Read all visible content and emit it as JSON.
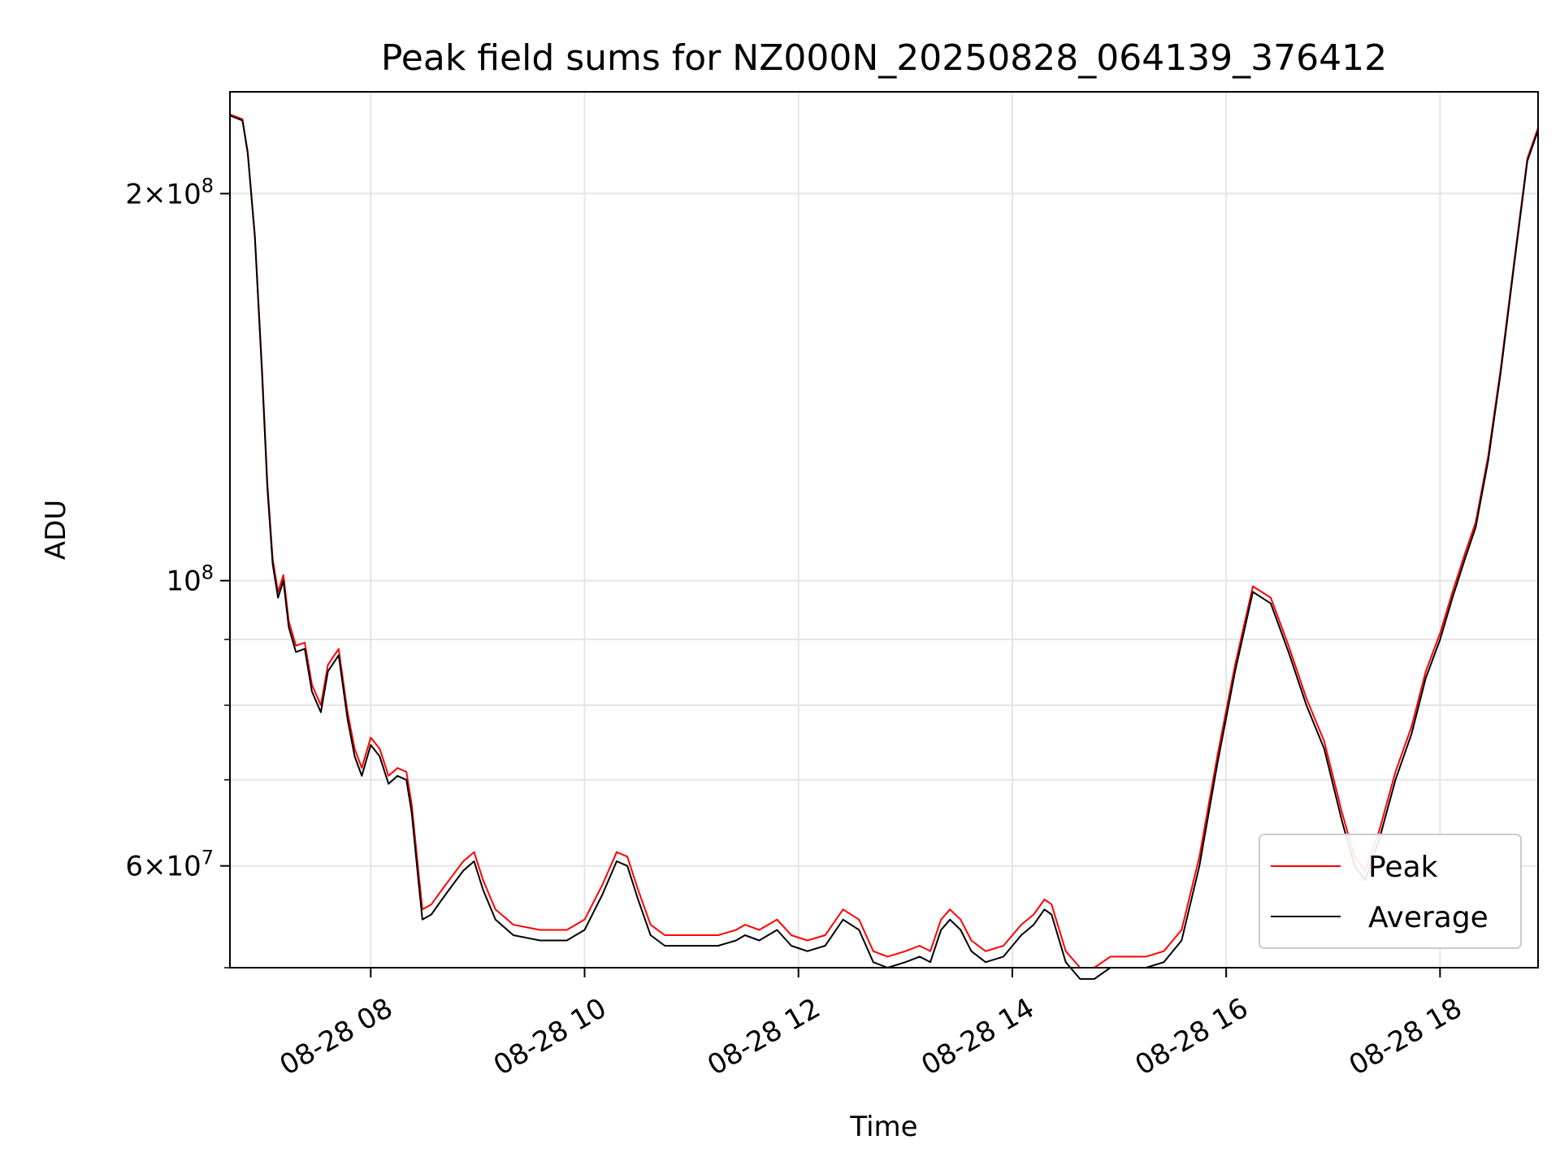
{
  "chart_data": {
    "type": "line",
    "title": "Peak field sums for NZ000N_20250828_064139_376412",
    "xlabel": "Time",
    "ylabel": "ADU",
    "x_range": [
      "2025-08-28 06:41",
      "2025-08-28 18:55"
    ],
    "ylim": [
      50000000,
      240000000
    ],
    "y_scale": "log",
    "grid": true,
    "legend": "bottom-right",
    "x_ticks": [
      {
        "value": "2025-08-28 08:00",
        "label": "08-28 08"
      },
      {
        "value": "2025-08-28 10:00",
        "label": "08-28 10"
      },
      {
        "value": "2025-08-28 12:00",
        "label": "08-28 12"
      },
      {
        "value": "2025-08-28 14:00",
        "label": "08-28 14"
      },
      {
        "value": "2025-08-28 16:00",
        "label": "08-28 16"
      },
      {
        "value": "2025-08-28 18:00",
        "label": "08-28 18"
      }
    ],
    "y_ticks": [
      {
        "value": 60000000,
        "base": "6",
        "exp": "7"
      },
      {
        "value": 100000000,
        "base": "10",
        "exp": "8"
      },
      {
        "value": 200000000,
        "base": "2",
        "exp": "8"
      }
    ],
    "y_minor_ticks": [
      50000000,
      70000000,
      80000000,
      90000000
    ],
    "series": [
      {
        "name": "Average",
        "color": "#000000",
        "points": [
          [
            "2025-08-28 06:41",
            230000000
          ],
          [
            "2025-08-28 06:48",
            228000000
          ],
          [
            "2025-08-28 06:51",
            215000000
          ],
          [
            "2025-08-28 06:55",
            185000000
          ],
          [
            "2025-08-28 06:59",
            145000000
          ],
          [
            "2025-08-28 07:02",
            118000000
          ],
          [
            "2025-08-28 07:05",
            103000000
          ],
          [
            "2025-08-28 07:08",
            97000000
          ],
          [
            "2025-08-28 07:11",
            100000000
          ],
          [
            "2025-08-28 07:14",
            92000000
          ],
          [
            "2025-08-28 07:18",
            88000000
          ],
          [
            "2025-08-28 07:23",
            88500000
          ],
          [
            "2025-08-28 07:27",
            82000000
          ],
          [
            "2025-08-28 07:32",
            79000000
          ],
          [
            "2025-08-28 07:36",
            85000000
          ],
          [
            "2025-08-28 07:42",
            87500000
          ],
          [
            "2025-08-28 07:47",
            78000000
          ],
          [
            "2025-08-28 07:51",
            73000000
          ],
          [
            "2025-08-28 07:55",
            70500000
          ],
          [
            "2025-08-28 08:00",
            74500000
          ],
          [
            "2025-08-28 08:05",
            73000000
          ],
          [
            "2025-08-28 08:10",
            69500000
          ],
          [
            "2025-08-28 08:15",
            70500000
          ],
          [
            "2025-08-28 08:20",
            70000000
          ],
          [
            "2025-08-28 08:23",
            66000000
          ],
          [
            "2025-08-28 08:27",
            58000000
          ],
          [
            "2025-08-28 08:29",
            54500000
          ],
          [
            "2025-08-28 08:34",
            55000000
          ],
          [
            "2025-08-28 08:40",
            56500000
          ],
          [
            "2025-08-28 08:46",
            58000000
          ],
          [
            "2025-08-28 08:52",
            59500000
          ],
          [
            "2025-08-28 08:58",
            60500000
          ],
          [
            "2025-08-28 09:03",
            57500000
          ],
          [
            "2025-08-28 09:10",
            54500000
          ],
          [
            "2025-08-28 09:20",
            53000000
          ],
          [
            "2025-08-28 09:35",
            52500000
          ],
          [
            "2025-08-28 09:50",
            52500000
          ],
          [
            "2025-08-28 10:00",
            53500000
          ],
          [
            "2025-08-28 10:10",
            57000000
          ],
          [
            "2025-08-28 10:18",
            60500000
          ],
          [
            "2025-08-28 10:24",
            60000000
          ],
          [
            "2025-08-28 10:30",
            56500000
          ],
          [
            "2025-08-28 10:37",
            53000000
          ],
          [
            "2025-08-28 10:45",
            52000000
          ],
          [
            "2025-08-28 11:00",
            52000000
          ],
          [
            "2025-08-28 11:15",
            52000000
          ],
          [
            "2025-08-28 11:25",
            52500000
          ],
          [
            "2025-08-28 11:30",
            53000000
          ],
          [
            "2025-08-28 11:38",
            52500000
          ],
          [
            "2025-08-28 11:48",
            53500000
          ],
          [
            "2025-08-28 11:56",
            52000000
          ],
          [
            "2025-08-28 12:05",
            51500000
          ],
          [
            "2025-08-28 12:15",
            52000000
          ],
          [
            "2025-08-28 12:25",
            54500000
          ],
          [
            "2025-08-28 12:34",
            53500000
          ],
          [
            "2025-08-28 12:42",
            50500000
          ],
          [
            "2025-08-28 12:50",
            50000000
          ],
          [
            "2025-08-28 13:00",
            50500000
          ],
          [
            "2025-08-28 13:08",
            51000000
          ],
          [
            "2025-08-28 13:14",
            50500000
          ],
          [
            "2025-08-28 13:20",
            53500000
          ],
          [
            "2025-08-28 13:25",
            54500000
          ],
          [
            "2025-08-28 13:31",
            53500000
          ],
          [
            "2025-08-28 13:37",
            51500000
          ],
          [
            "2025-08-28 13:45",
            50500000
          ],
          [
            "2025-08-28 13:55",
            51000000
          ],
          [
            "2025-08-28 14:05",
            53000000
          ],
          [
            "2025-08-28 14:12",
            54000000
          ],
          [
            "2025-08-28 14:18",
            55500000
          ],
          [
            "2025-08-28 14:22",
            55000000
          ],
          [
            "2025-08-28 14:30",
            50500000
          ],
          [
            "2025-08-28 14:38",
            49000000
          ],
          [
            "2025-08-28 14:46",
            49000000
          ],
          [
            "2025-08-28 14:55",
            50000000
          ],
          [
            "2025-08-28 15:05",
            50000000
          ],
          [
            "2025-08-28 15:15",
            50000000
          ],
          [
            "2025-08-28 15:25",
            50500000
          ],
          [
            "2025-08-28 15:35",
            52500000
          ],
          [
            "2025-08-28 15:45",
            60000000
          ],
          [
            "2025-08-28 15:55",
            72000000
          ],
          [
            "2025-08-28 16:05",
            85000000
          ],
          [
            "2025-08-28 16:15",
            98000000
          ],
          [
            "2025-08-28 16:25",
            96000000
          ],
          [
            "2025-08-28 16:35",
            88000000
          ],
          [
            "2025-08-28 16:45",
            80000000
          ],
          [
            "2025-08-28 16:55",
            74000000
          ],
          [
            "2025-08-28 17:05",
            65000000
          ],
          [
            "2025-08-28 17:12",
            60000000
          ],
          [
            "2025-08-28 17:18",
            58500000
          ],
          [
            "2025-08-28 17:26",
            63000000
          ],
          [
            "2025-08-28 17:35",
            70000000
          ],
          [
            "2025-08-28 17:44",
            76000000
          ],
          [
            "2025-08-28 17:52",
            84000000
          ],
          [
            "2025-08-28 18:00",
            90000000
          ],
          [
            "2025-08-28 18:07",
            97000000
          ],
          [
            "2025-08-28 18:14",
            104000000
          ],
          [
            "2025-08-28 18:20",
            110000000
          ],
          [
            "2025-08-28 18:27",
            124000000
          ],
          [
            "2025-08-28 18:34",
            145000000
          ],
          [
            "2025-08-28 18:42",
            178000000
          ],
          [
            "2025-08-28 18:49",
            212000000
          ],
          [
            "2025-08-28 18:55",
            224000000
          ]
        ]
      },
      {
        "name": "Peak",
        "color": "#ff0000",
        "points": [
          [
            "2025-08-28 06:41",
            230500000
          ],
          [
            "2025-08-28 06:48",
            228500000
          ],
          [
            "2025-08-28 06:51",
            215500000
          ],
          [
            "2025-08-28 06:55",
            185500000
          ],
          [
            "2025-08-28 06:59",
            146000000
          ],
          [
            "2025-08-28 07:02",
            119000000
          ],
          [
            "2025-08-28 07:05",
            104000000
          ],
          [
            "2025-08-28 07:08",
            98000000
          ],
          [
            "2025-08-28 07:11",
            101000000
          ],
          [
            "2025-08-28 07:14",
            93000000
          ],
          [
            "2025-08-28 07:18",
            89000000
          ],
          [
            "2025-08-28 07:23",
            89500000
          ],
          [
            "2025-08-28 07:27",
            83000000
          ],
          [
            "2025-08-28 07:32",
            80000000
          ],
          [
            "2025-08-28 07:36",
            86000000
          ],
          [
            "2025-08-28 07:42",
            88500000
          ],
          [
            "2025-08-28 07:47",
            79000000
          ],
          [
            "2025-08-28 07:51",
            74000000
          ],
          [
            "2025-08-28 07:55",
            71500000
          ],
          [
            "2025-08-28 08:00",
            75500000
          ],
          [
            "2025-08-28 08:05",
            74000000
          ],
          [
            "2025-08-28 08:10",
            70500000
          ],
          [
            "2025-08-28 08:15",
            71500000
          ],
          [
            "2025-08-28 08:20",
            71000000
          ],
          [
            "2025-08-28 08:23",
            67000000
          ],
          [
            "2025-08-28 08:27",
            59000000
          ],
          [
            "2025-08-28 08:29",
            55500000
          ],
          [
            "2025-08-28 08:34",
            56000000
          ],
          [
            "2025-08-28 08:40",
            57500000
          ],
          [
            "2025-08-28 08:46",
            59000000
          ],
          [
            "2025-08-28 08:52",
            60500000
          ],
          [
            "2025-08-28 08:58",
            61500000
          ],
          [
            "2025-08-28 09:03",
            58500000
          ],
          [
            "2025-08-28 09:10",
            55500000
          ],
          [
            "2025-08-28 09:20",
            54000000
          ],
          [
            "2025-08-28 09:35",
            53500000
          ],
          [
            "2025-08-28 09:50",
            53500000
          ],
          [
            "2025-08-28 10:00",
            54500000
          ],
          [
            "2025-08-28 10:10",
            58000000
          ],
          [
            "2025-08-28 10:18",
            61500000
          ],
          [
            "2025-08-28 10:24",
            61000000
          ],
          [
            "2025-08-28 10:30",
            57500000
          ],
          [
            "2025-08-28 10:37",
            54000000
          ],
          [
            "2025-08-28 10:45",
            53000000
          ],
          [
            "2025-08-28 11:00",
            53000000
          ],
          [
            "2025-08-28 11:15",
            53000000
          ],
          [
            "2025-08-28 11:25",
            53500000
          ],
          [
            "2025-08-28 11:30",
            54000000
          ],
          [
            "2025-08-28 11:38",
            53500000
          ],
          [
            "2025-08-28 11:48",
            54500000
          ],
          [
            "2025-08-28 11:56",
            53000000
          ],
          [
            "2025-08-28 12:05",
            52500000
          ],
          [
            "2025-08-28 12:15",
            53000000
          ],
          [
            "2025-08-28 12:25",
            55500000
          ],
          [
            "2025-08-28 12:34",
            54500000
          ],
          [
            "2025-08-28 12:42",
            51500000
          ],
          [
            "2025-08-28 12:50",
            51000000
          ],
          [
            "2025-08-28 13:00",
            51500000
          ],
          [
            "2025-08-28 13:08",
            52000000
          ],
          [
            "2025-08-28 13:14",
            51500000
          ],
          [
            "2025-08-28 13:20",
            54500000
          ],
          [
            "2025-08-28 13:25",
            55500000
          ],
          [
            "2025-08-28 13:31",
            54500000
          ],
          [
            "2025-08-28 13:37",
            52500000
          ],
          [
            "2025-08-28 13:45",
            51500000
          ],
          [
            "2025-08-28 13:55",
            52000000
          ],
          [
            "2025-08-28 14:05",
            54000000
          ],
          [
            "2025-08-28 14:12",
            55000000
          ],
          [
            "2025-08-28 14:18",
            56500000
          ],
          [
            "2025-08-28 14:22",
            56000000
          ],
          [
            "2025-08-28 14:30",
            51500000
          ],
          [
            "2025-08-28 14:38",
            50000000
          ],
          [
            "2025-08-28 14:46",
            50000000
          ],
          [
            "2025-08-28 14:55",
            51000000
          ],
          [
            "2025-08-28 15:05",
            51000000
          ],
          [
            "2025-08-28 15:15",
            51000000
          ],
          [
            "2025-08-28 15:25",
            51500000
          ],
          [
            "2025-08-28 15:35",
            53500000
          ],
          [
            "2025-08-28 15:45",
            61000000
          ],
          [
            "2025-08-28 15:55",
            73000000
          ],
          [
            "2025-08-28 16:05",
            86000000
          ],
          [
            "2025-08-28 16:15",
            99000000
          ],
          [
            "2025-08-28 16:25",
            97000000
          ],
          [
            "2025-08-28 16:35",
            89000000
          ],
          [
            "2025-08-28 16:45",
            81000000
          ],
          [
            "2025-08-28 16:55",
            75000000
          ],
          [
            "2025-08-28 17:05",
            66000000
          ],
          [
            "2025-08-28 17:12",
            61000000
          ],
          [
            "2025-08-28 17:18",
            59500000
          ],
          [
            "2025-08-28 17:26",
            64000000
          ],
          [
            "2025-08-28 17:35",
            71000000
          ],
          [
            "2025-08-28 17:44",
            77000000
          ],
          [
            "2025-08-28 17:52",
            85000000
          ],
          [
            "2025-08-28 18:00",
            91000000
          ],
          [
            "2025-08-28 18:07",
            98000000
          ],
          [
            "2025-08-28 18:14",
            105000000
          ],
          [
            "2025-08-28 18:20",
            111000000
          ],
          [
            "2025-08-28 18:27",
            125000000
          ],
          [
            "2025-08-28 18:34",
            146000000
          ],
          [
            "2025-08-28 18:42",
            179000000
          ],
          [
            "2025-08-28 18:49",
            213000000
          ],
          [
            "2025-08-28 18:55",
            225000000
          ]
        ]
      }
    ]
  }
}
